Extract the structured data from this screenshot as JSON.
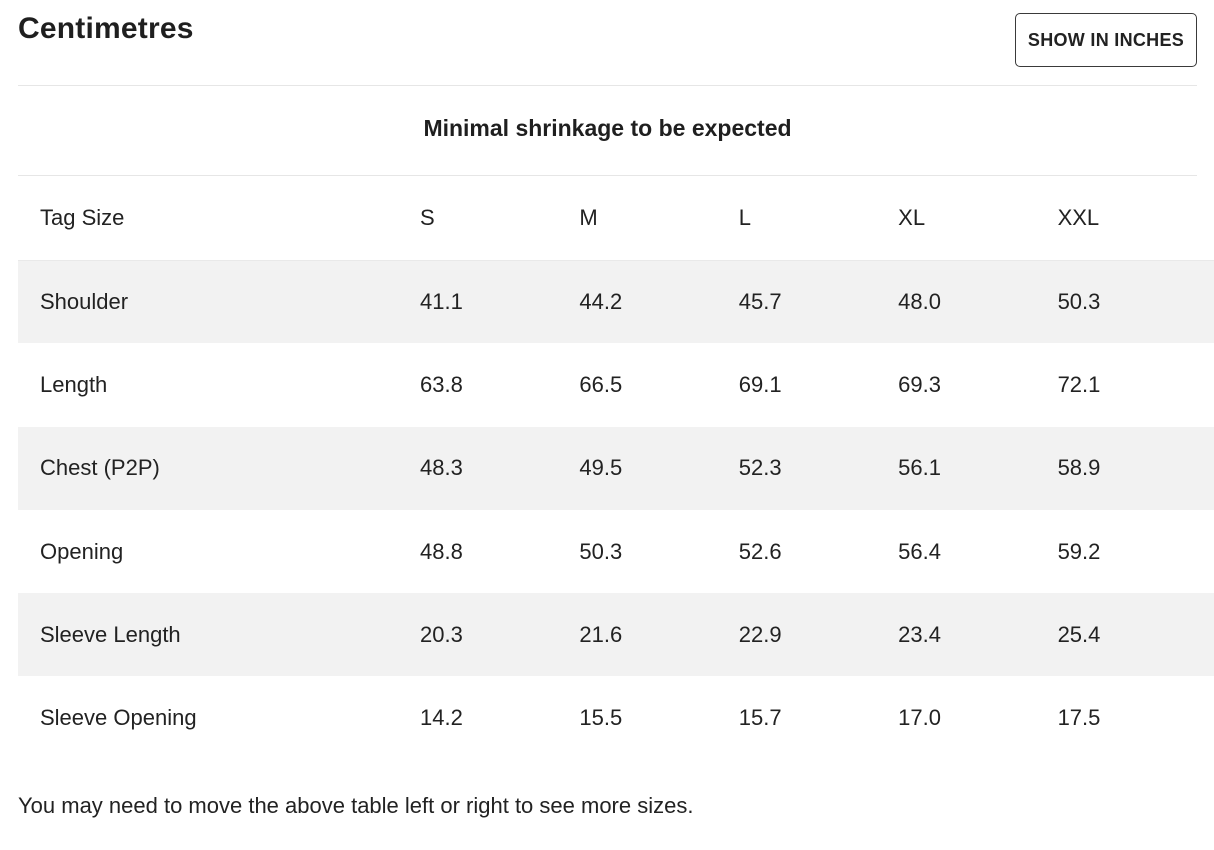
{
  "header": {
    "title": "Centimetres",
    "toggle_label": "SHOW IN INCHES"
  },
  "subtitle": "Minimal shrinkage to be expected",
  "table": {
    "header": {
      "label": "Tag Size",
      "sizes": [
        "S",
        "M",
        "L",
        "XL",
        "XXL"
      ]
    },
    "rows": [
      {
        "label": "Shoulder",
        "values": [
          "41.1",
          "44.2",
          "45.7",
          "48.0",
          "50.3"
        ]
      },
      {
        "label": "Length",
        "values": [
          "63.8",
          "66.5",
          "69.1",
          "69.3",
          "72.1"
        ]
      },
      {
        "label": "Chest (P2P)",
        "values": [
          "48.3",
          "49.5",
          "52.3",
          "56.1",
          "58.9"
        ]
      },
      {
        "label": "Opening",
        "values": [
          "48.8",
          "50.3",
          "52.6",
          "56.4",
          "59.2"
        ]
      },
      {
        "label": "Sleeve Length",
        "values": [
          "20.3",
          "21.6",
          "22.9",
          "23.4",
          "25.4"
        ]
      },
      {
        "label": "Sleeve Opening",
        "values": [
          "14.2",
          "15.5",
          "15.7",
          "17.0",
          "17.5"
        ]
      }
    ]
  },
  "footnote": "You may need to move the above table left or right to see more sizes."
}
